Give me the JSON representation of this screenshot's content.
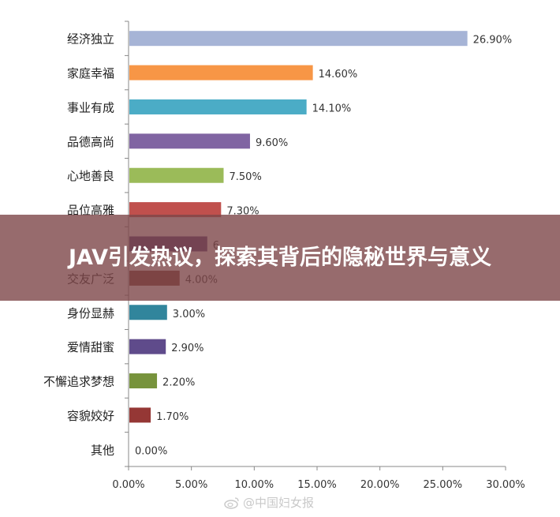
{
  "chart_data": {
    "type": "bar",
    "orientation": "horizontal",
    "categories": [
      "经济独立",
      "家庭幸福",
      "事业有成",
      "品德高尚",
      "心地善良",
      "品位高雅",
      "",
      "交友广泛",
      "身份显赫",
      "爱情甜蜜",
      "不懈追求梦想",
      "容貌姣好",
      "其他"
    ],
    "values": [
      26.9,
      14.6,
      14.1,
      9.6,
      7.5,
      7.3,
      6.2,
      4.0,
      3.0,
      2.9,
      2.2,
      1.7,
      0.0
    ],
    "value_labels": [
      "26.90%",
      "14.60%",
      "14.10%",
      "9.60%",
      "7.50%",
      "7.30%",
      "6",
      "4.00%",
      "3.00%",
      "2.90%",
      "2.20%",
      "1.70%",
      "0.00%"
    ],
    "colors": [
      "#a6b4d6",
      "#f79646",
      "#4bacc6",
      "#8064a2",
      "#9bbb59",
      "#c0504d",
      "#4f3a78",
      "#7f3f34",
      "#31859c",
      "#5f4b8b",
      "#77933c",
      "#953735",
      "#4f81bd"
    ],
    "xlim": [
      0,
      30
    ],
    "xticks": [
      "0.00%",
      "5.00%",
      "10.00%",
      "15.00%",
      "20.00%",
      "25.00%",
      "30.00%"
    ],
    "xtick_values": [
      0,
      5,
      10,
      15,
      20,
      25,
      30
    ],
    "grid": false,
    "title": "",
    "xlabel": "",
    "ylabel": ""
  },
  "overlay": {
    "title": "JAV引发热议，探索其背后的隐秘世界与意义"
  },
  "watermark": {
    "text": "@中国妇女报",
    "icon": "weibo-icon"
  }
}
